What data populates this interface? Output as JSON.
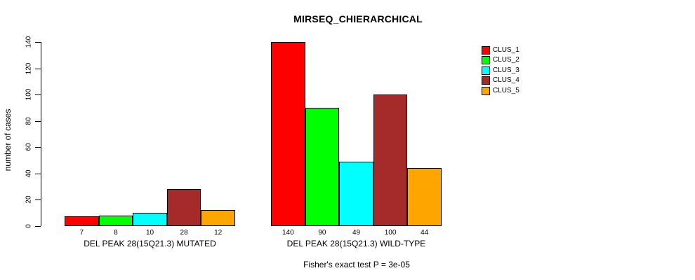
{
  "title": "MIRSEQ_CHIERARCHICAL",
  "ylabel": "number of cases",
  "footer": "Fisher's exact test P = 3e-05",
  "legend": {
    "items": [
      {
        "label": "CLUS_1",
        "color": "#FF0000"
      },
      {
        "label": "CLUS_2",
        "color": "#00FF00"
      },
      {
        "label": "CLUS_3",
        "color": "#00FFFF"
      },
      {
        "label": "CLUS_4",
        "color": "#A52A2A"
      },
      {
        "label": "CLUS_5",
        "color": "#FFA500"
      }
    ],
    "position": "right"
  },
  "chart_data": {
    "type": "bar",
    "title": "MIRSEQ_CHIERARCHICAL",
    "xlabel": "",
    "ylabel": "number of cases",
    "ylim": [
      0,
      140
    ],
    "yticks": [
      0,
      20,
      40,
      60,
      80,
      100,
      120,
      140
    ],
    "grid": false,
    "legend_position": "right",
    "series": [
      "CLUS_1",
      "CLUS_2",
      "CLUS_3",
      "CLUS_4",
      "CLUS_5"
    ],
    "colors": [
      "#FF0000",
      "#00FF00",
      "#00FFFF",
      "#A52A2A",
      "#FFA500"
    ],
    "groups": [
      {
        "label": "DEL PEAK 28(15Q21.3) MUTATED",
        "values": [
          7,
          8,
          10,
          28,
          12
        ],
        "bar_tick_labels": [
          "7",
          "8",
          "10",
          "28",
          "12"
        ]
      },
      {
        "label": "DEL PEAK 28(15Q21.3) WILD-TYPE",
        "values": [
          140,
          90,
          49,
          100,
          44
        ],
        "bar_tick_labels": [
          "140",
          "90",
          "49",
          "100",
          "44"
        ]
      }
    ],
    "annotations": [
      "Fisher's exact test P = 3e-05"
    ]
  }
}
